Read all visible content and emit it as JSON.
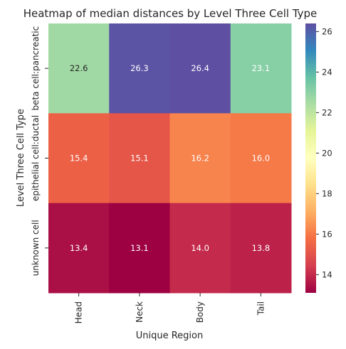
{
  "chart_data": {
    "type": "heatmap",
    "title": "Heatmap of median distances by Level Three Cell Type",
    "xlabel": "Unique Region",
    "ylabel": "Level Three Cell Type",
    "columns": [
      "Head",
      "Neck",
      "Body",
      "Tail"
    ],
    "rows": [
      "beta cell:pancreatic",
      "epithelial cell:ductal",
      "unknown cell"
    ],
    "values": [
      [
        22.6,
        26.3,
        26.4,
        23.1
      ],
      [
        15.4,
        15.1,
        16.2,
        16.0
      ],
      [
        13.4,
        13.1,
        14.0,
        13.8
      ]
    ],
    "colorbar": {
      "colormap": "Spectral",
      "range": [
        13.1,
        26.4
      ],
      "ticks": [
        14,
        16,
        18,
        20,
        22,
        24,
        26
      ]
    }
  }
}
